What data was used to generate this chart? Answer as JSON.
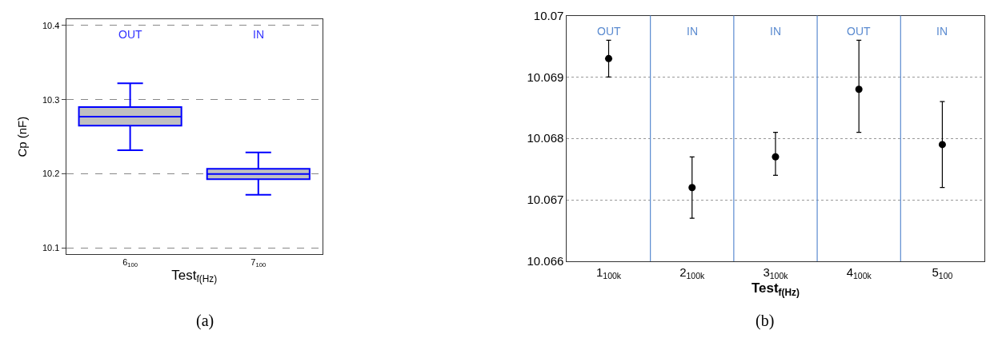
{
  "chart_data": [
    {
      "type": "box",
      "title": "(a)",
      "xlabel": "Test$_{f(Hz)}$",
      "ylabel": "Cp (nF)",
      "categories": [
        "6$_{100}$",
        "7$_{100}$"
      ],
      "series": [
        {
          "color": "#0000ff",
          "boxes": [
            {
              "low": 10.232,
              "q1": 10.265,
              "median": 10.277,
              "q3": 10.29,
              "high": 10.322
            },
            {
              "low": 10.172,
              "q1": 10.193,
              "median": 10.2,
              "q3": 10.207,
              "high": 10.229
            }
          ]
        }
      ],
      "ylim": [
        10.092,
        10.408
      ],
      "yticks": [
        10.1,
        10.2,
        10.3,
        10.4
      ],
      "grid": "y",
      "annotations": [
        "OUT",
        "IN"
      ]
    },
    {
      "type": "scatter",
      "title": "(b)",
      "xlabel": "Test$_{f(Hz)}$",
      "categories": [
        "1$_{100k}$",
        "2$_{100k}$",
        "3$_{100k}$",
        "4$_{100k}$",
        "5$_{100}$"
      ],
      "series": [
        {
          "color": "#000000",
          "values": [
            10.0693,
            10.0672,
            10.0677,
            10.0688,
            10.0679
          ],
          "errors": [
            [
              10.069,
              10.0696
            ],
            [
              10.0667,
              10.0677
            ],
            [
              10.0674,
              10.0681
            ],
            [
              10.0681,
              10.0696
            ],
            [
              10.0672,
              10.0686
            ]
          ]
        }
      ],
      "marker": "circle",
      "ylim": [
        10.066,
        10.07
      ],
      "yticks": [
        10.066,
        10.067,
        10.068,
        10.069,
        10.07
      ],
      "grid": "y",
      "annotations": [
        "OUT",
        "IN",
        "IN",
        "OUT",
        "IN"
      ]
    }
  ]
}
